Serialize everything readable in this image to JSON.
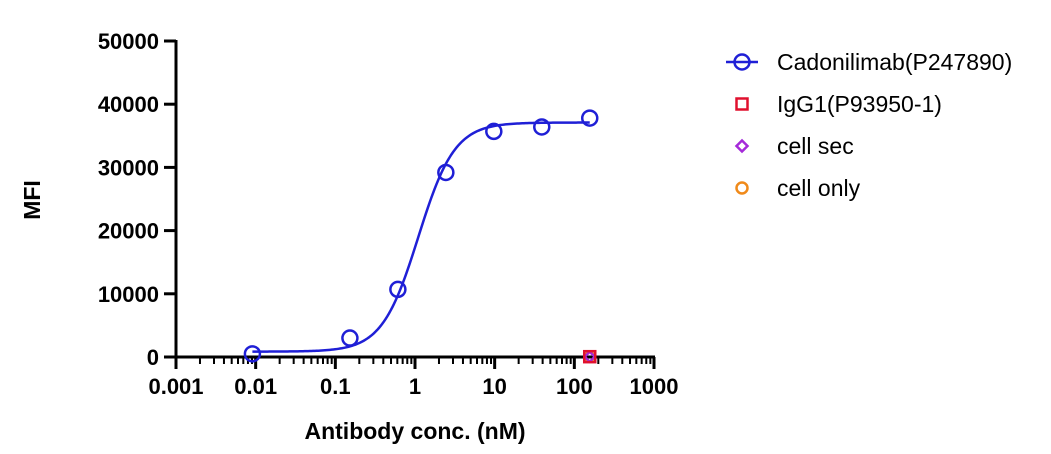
{
  "chart_data": {
    "type": "scatter",
    "xscale": "log",
    "xlim": [
      0.001,
      1000
    ],
    "ylim": [
      0,
      50000
    ],
    "xlabel": "Antibody conc. (nM)",
    "ylabel": "MFI",
    "x_ticks": [
      {
        "value": 0.001,
        "label": "0.001"
      },
      {
        "value": 0.01,
        "label": "0.01"
      },
      {
        "value": 0.1,
        "label": "0.1"
      },
      {
        "value": 1,
        "label": "1"
      },
      {
        "value": 10,
        "label": "10"
      },
      {
        "value": 100,
        "label": "100"
      },
      {
        "value": 1000,
        "label": "1000"
      }
    ],
    "y_ticks": [
      {
        "value": 0,
        "label": "0"
      },
      {
        "value": 10000,
        "label": "10000"
      },
      {
        "value": 20000,
        "label": "20000"
      },
      {
        "value": 30000,
        "label": "30000"
      },
      {
        "value": 40000,
        "label": "40000"
      },
      {
        "value": 50000,
        "label": "50000"
      }
    ],
    "legend_position": "right",
    "series": [
      {
        "name": "Cadonilimab(P247890)",
        "color": "#1f1fd6",
        "marker": "circle",
        "fit_curve": true,
        "x": [
          0.0091,
          0.1524,
          0.6097,
          2.439,
          9.756,
          39.02,
          156.1
        ],
        "y": [
          500,
          3000,
          10700,
          29200,
          35700,
          36400,
          37800
        ]
      },
      {
        "name": "IgG1(P93950-1)",
        "color": "#e0102e",
        "marker": "square",
        "fit_curve": false,
        "x": [
          156.1
        ],
        "y": [
          50
        ]
      },
      {
        "name": "cell sec",
        "color": "#a52ad9",
        "marker": "diamond",
        "fit_curve": false,
        "x": [
          156.1
        ],
        "y": [
          40
        ]
      },
      {
        "name": "cell only",
        "color": "#f08a1a",
        "marker": "circle",
        "fit_curve": false,
        "x": [
          156.1
        ],
        "y": [
          30
        ]
      }
    ],
    "fit": {
      "bottom": 850,
      "top": 37100,
      "ec50": 1.1,
      "hill": 1.9
    }
  }
}
